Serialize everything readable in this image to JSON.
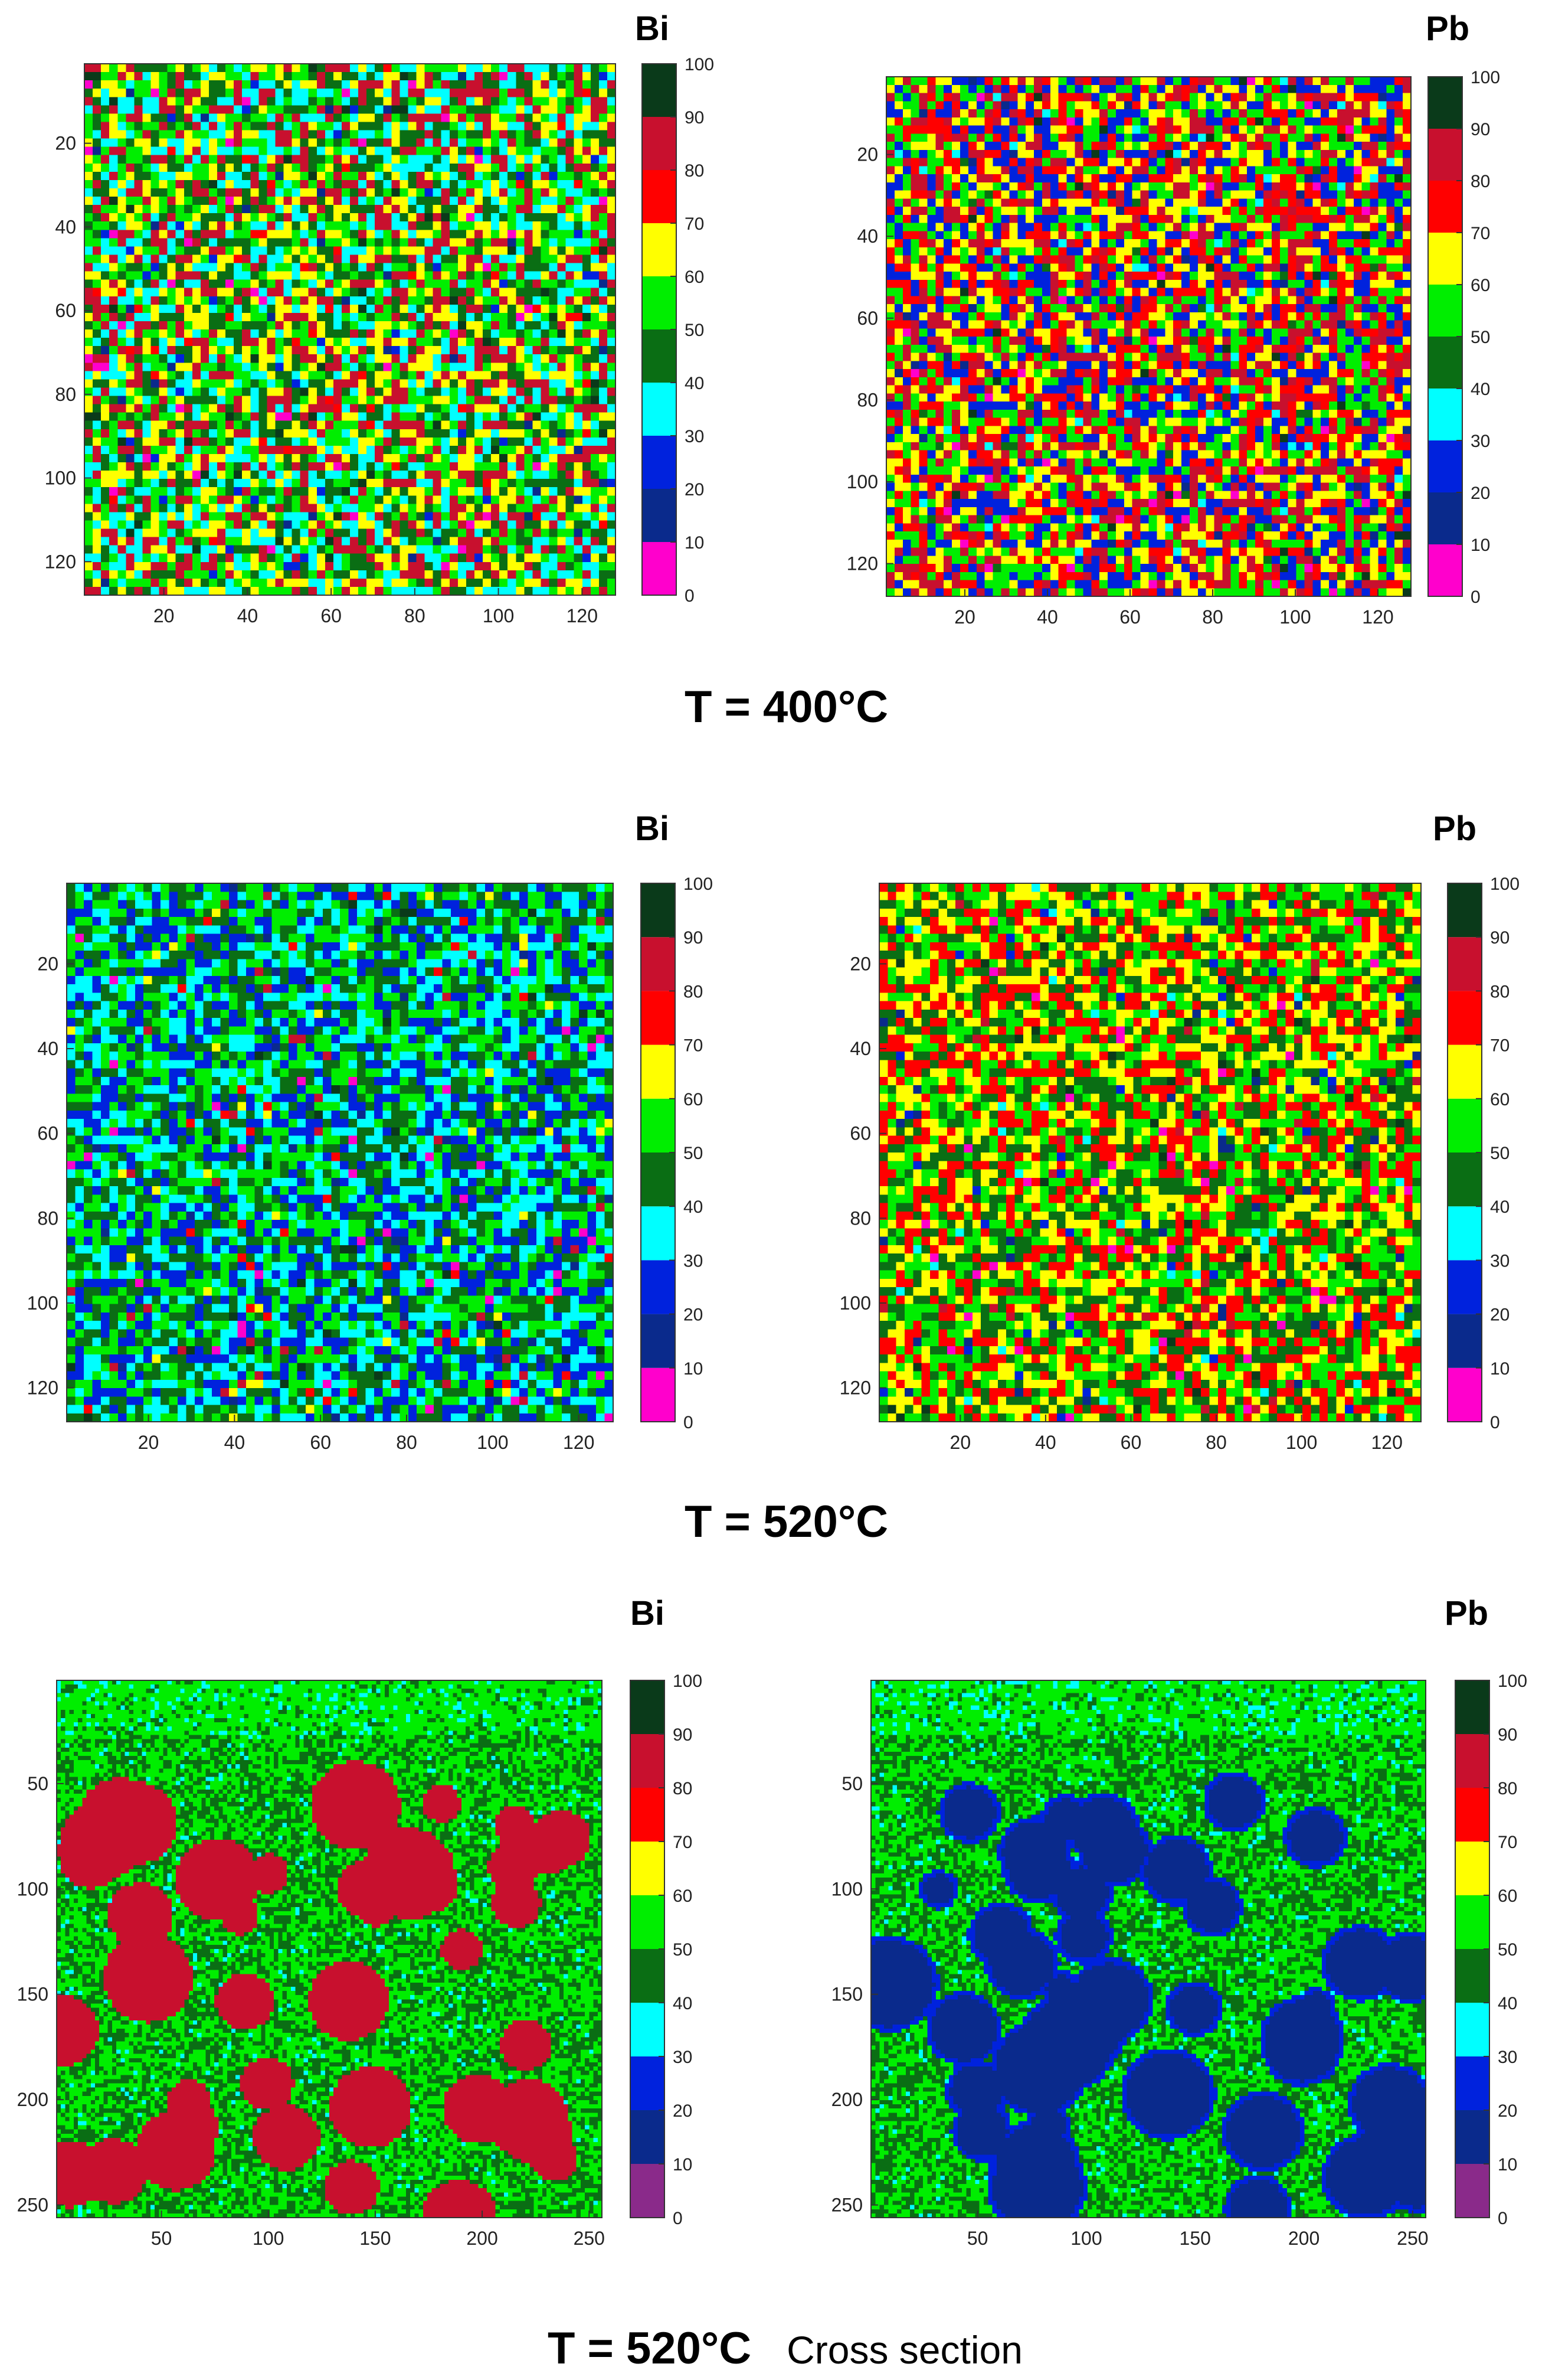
{
  "figure": {
    "rows": [
      {
        "caption": "T = 400°C",
        "caption_note": ""
      },
      {
        "caption": "T = 520°C",
        "caption_note": ""
      },
      {
        "caption": "T = 520°C",
        "caption_note": "Cross section"
      }
    ]
  },
  "colorbar": {
    "ticks": [
      0,
      10,
      20,
      30,
      40,
      50,
      60,
      70,
      80,
      90,
      100
    ],
    "bin_colors": [
      "#ff00cc",
      "#0a2a8c",
      "#0022dd",
      "#00ffff",
      "#0a6e14",
      "#00ee00",
      "#ffff00",
      "#ff0000",
      "#c8102e",
      "#0a3a1a"
    ],
    "bin_colors_cross_section": [
      "#8a2a8a",
      "#0a2a8c",
      "#0022dd",
      "#00ffff",
      "#0a6e14",
      "#00ee00",
      "#ffff00",
      "#ff0000",
      "#c8102e",
      "#0a3a1a"
    ]
  },
  "chart_data": [
    {
      "type": "heatmap",
      "title": "Bi",
      "condition": "T = 400°C",
      "xlim": [
        1,
        128
      ],
      "ylim": [
        1,
        128
      ],
      "xticks": [
        20,
        40,
        60,
        80,
        100,
        120
      ],
      "yticks": [
        20,
        40,
        60,
        80,
        100,
        120
      ],
      "value_range": [
        0,
        100
      ],
      "pattern": "noise",
      "dominant_bins": [
        30,
        40,
        50,
        60,
        80
      ]
    },
    {
      "type": "heatmap",
      "title": "Pb",
      "condition": "T = 400°C",
      "xlim": [
        1,
        128
      ],
      "ylim": [
        1,
        128
      ],
      "xticks": [
        20,
        40,
        60,
        80,
        100,
        120
      ],
      "yticks": [
        20,
        40,
        60,
        80,
        100,
        120
      ],
      "value_range": [
        0,
        100
      ],
      "pattern": "noise",
      "dominant_bins": [
        20,
        50,
        60,
        70,
        80
      ]
    },
    {
      "type": "heatmap",
      "title": "Bi",
      "condition": "T = 520°C",
      "xlim": [
        1,
        128
      ],
      "ylim": [
        1,
        128
      ],
      "xticks": [
        20,
        40,
        60,
        80,
        100,
        120
      ],
      "yticks": [
        20,
        40,
        60,
        80,
        100,
        120
      ],
      "value_range": [
        0,
        100
      ],
      "pattern": "noise",
      "dominant_bins": [
        20,
        30,
        40,
        50
      ]
    },
    {
      "type": "heatmap",
      "title": "Pb",
      "condition": "T = 520°C",
      "xlim": [
        1,
        128
      ],
      "ylim": [
        1,
        128
      ],
      "xticks": [
        20,
        40,
        60,
        80,
        100,
        120
      ],
      "yticks": [
        20,
        40,
        60,
        80,
        100,
        120
      ],
      "value_range": [
        0,
        100
      ],
      "pattern": "noise",
      "dominant_bins": [
        40,
        50,
        60,
        70
      ]
    },
    {
      "type": "heatmap",
      "title": "Bi",
      "condition": "T = 520°C Cross section",
      "xlim": [
        1,
        256
      ],
      "ylim": [
        1,
        256
      ],
      "xticks": [
        50,
        100,
        150,
        200,
        250
      ],
      "yticks": [
        50,
        100,
        150,
        200,
        250
      ],
      "value_range": [
        0,
        100
      ],
      "pattern": "blobs",
      "background_bins": [
        40,
        50
      ],
      "blob_bin": 80
    },
    {
      "type": "heatmap",
      "title": "Pb",
      "condition": "T = 520°C Cross section",
      "xlim": [
        1,
        256
      ],
      "ylim": [
        1,
        256
      ],
      "xticks": [
        50,
        100,
        150,
        200,
        250
      ],
      "yticks": [
        50,
        100,
        150,
        200,
        250
      ],
      "value_range": [
        0,
        100
      ],
      "pattern": "blobs",
      "background_bins": [
        40,
        50
      ],
      "blob_bin": 10
    }
  ]
}
